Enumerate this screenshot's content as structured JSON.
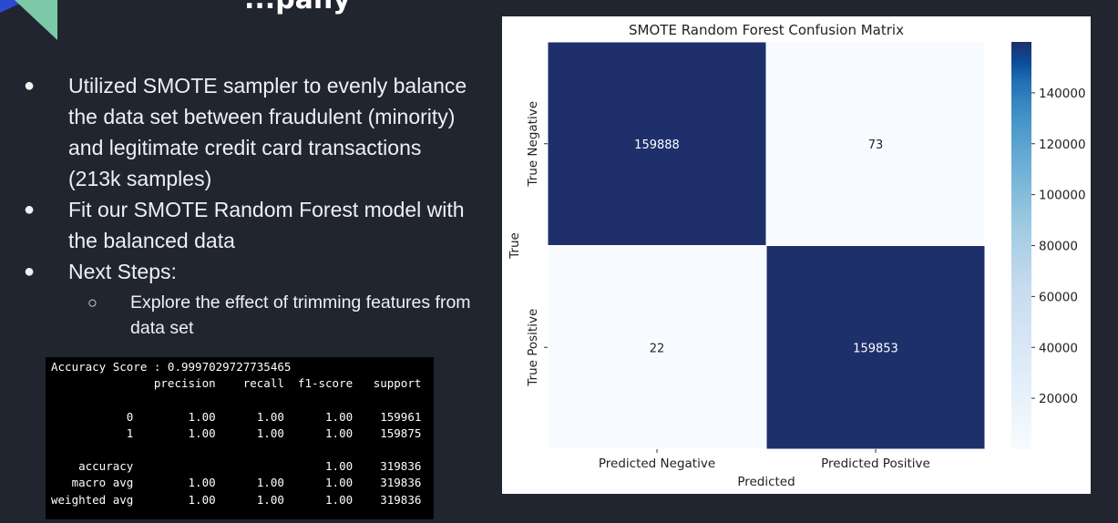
{
  "slide": {
    "title_fragment": "...pany",
    "bullets": [
      {
        "text": "Utilized SMOTE sampler to evenly balance the data set between fraudulent (minority) and legitimate credit card transactions (213k samples)"
      },
      {
        "text": "Fit our SMOTE Random Forest model with the balanced data"
      },
      {
        "text": "Next Steps:"
      }
    ],
    "sub_bullets": [
      {
        "text": "Explore the effect of trimming features from data set"
      }
    ],
    "bullet_glyph": "●",
    "sub_bullet_glyph": "○"
  },
  "classification_report": {
    "accuracy_line": "Accuracy Score : 0.9997029727735465",
    "headers": [
      "precision",
      "recall",
      "f1-score",
      "support"
    ],
    "rows": [
      {
        "label": "0",
        "precision": "1.00",
        "recall": "1.00",
        "f1": "1.00",
        "support": "159961"
      },
      {
        "label": "1",
        "precision": "1.00",
        "recall": "1.00",
        "f1": "1.00",
        "support": "159875"
      },
      {
        "label": "accuracy",
        "precision": "",
        "recall": "",
        "f1": "1.00",
        "support": "319836"
      },
      {
        "label": "macro avg",
        "precision": "1.00",
        "recall": "1.00",
        "f1": "1.00",
        "support": "319836"
      },
      {
        "label": "weighted avg",
        "precision": "1.00",
        "recall": "1.00",
        "f1": "1.00",
        "support": "319836"
      }
    ]
  },
  "chart_data": {
    "type": "heatmap",
    "title": "SMOTE Random Forest Confusion Matrix",
    "xlabel": "Predicted",
    "ylabel": "True",
    "x_categories": [
      "Predicted Negative",
      "Predicted Positive"
    ],
    "y_categories": [
      "True Negative",
      "True Positive"
    ],
    "values": [
      [
        159888,
        73
      ],
      [
        22,
        159853
      ]
    ],
    "colormap": "Blues",
    "colorbar_range": [
      0,
      160000
    ],
    "colorbar_ticks": [
      20000,
      40000,
      60000,
      80000,
      100000,
      120000,
      140000
    ],
    "colorbar_tick_labels": [
      "20000",
      "40000",
      "60000",
      "80000",
      "100000",
      "120000",
      "140000"
    ],
    "high_color": "#1f2f6b",
    "low_color": "#f7fbff"
  },
  "colors": {
    "background": "#212530",
    "corner_teal": "#7dc9a7",
    "corner_blue": "#2a4bd0"
  }
}
